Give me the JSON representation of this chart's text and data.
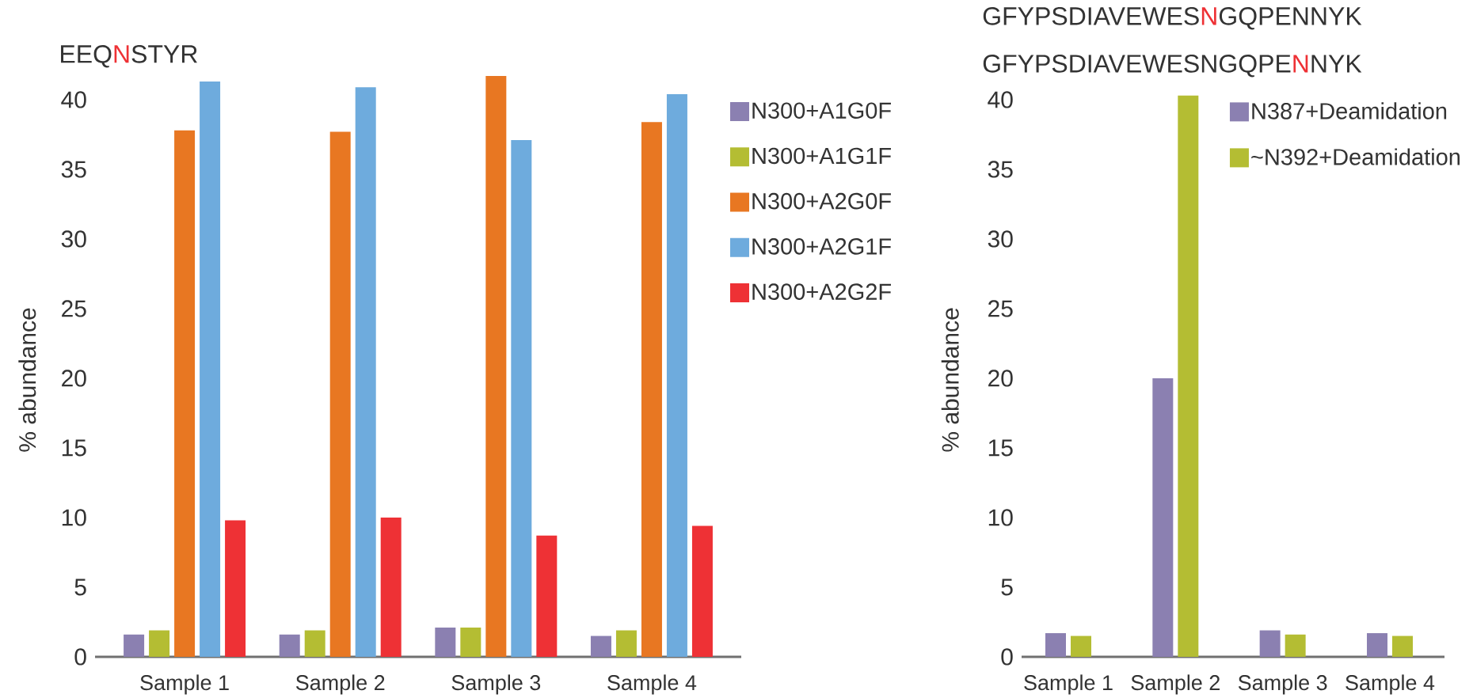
{
  "chart_data": [
    {
      "type": "bar",
      "title": "EEQ**N**STYR",
      "ylabel": "% abundance",
      "categories": [
        "Sample 1",
        "Sample 2",
        "Sample 3",
        "Sample 4"
      ],
      "series": [
        {
          "name": "N300+A1G0F",
          "color": "#8b80b1",
          "values": [
            1.6,
            1.6,
            2.1,
            1.5
          ]
        },
        {
          "name": "N300+A1G1F",
          "color": "#b4bd33",
          "values": [
            1.9,
            1.9,
            2.1,
            1.9
          ]
        },
        {
          "name": "N300+A2G0F",
          "color": "#e87722",
          "values": [
            37.8,
            37.7,
            41.7,
            38.4
          ]
        },
        {
          "name": "N300+A2G1F",
          "color": "#6eabdd",
          "values": [
            41.3,
            40.9,
            37.1,
            40.4
          ]
        },
        {
          "name": "N300+A2G2F",
          "color": "#ee3135",
          "values": [
            9.8,
            10.0,
            8.7,
            9.4
          ]
        }
      ],
      "ylim": [
        0,
        41.7
      ],
      "yticks": [
        0,
        5,
        10,
        15,
        20,
        25,
        30,
        35,
        40
      ],
      "legend": "right"
    },
    {
      "type": "bar",
      "title": "GFYPSDIAVEWES**N**GQPENNYK",
      "subtitle": "GFYPSDIAVEWESNGQPE**N**NYK",
      "ylabel": "% abundance",
      "categories": [
        "Sample 1",
        "Sample 2",
        "Sample 3",
        "Sample 4"
      ],
      "series": [
        {
          "name": "N387+Deamidation",
          "color": "#8b80b1",
          "values": [
            1.7,
            20.0,
            1.9,
            1.7
          ]
        },
        {
          "name": "~N392+Deamidation",
          "color": "#b4bd33",
          "values": [
            1.5,
            40.3,
            1.6,
            1.5
          ]
        }
      ],
      "ylim": [
        0,
        40.3
      ],
      "yticks": [
        0,
        5,
        10,
        15,
        20,
        25,
        30,
        35,
        40
      ],
      "legend": "top right"
    }
  ]
}
